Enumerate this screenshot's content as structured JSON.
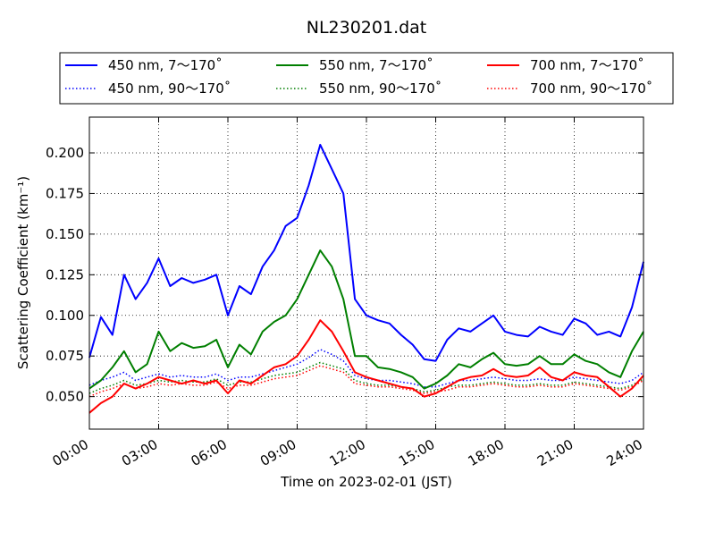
{
  "chart_data": {
    "type": "line",
    "title": "NL230201.dat",
    "xlabel": "Time on 2023-02-01 (JST)",
    "ylabel": "Scattering Coefficient (km⁻¹)",
    "xlim": [
      0,
      24
    ],
    "ylim": [
      0.03,
      0.222
    ],
    "xticks": [
      0,
      3,
      6,
      9,
      12,
      15,
      18,
      21,
      24
    ],
    "xtick_labels": [
      "00:00",
      "03:00",
      "06:00",
      "09:00",
      "12:00",
      "15:00",
      "18:00",
      "21:00",
      "24:00"
    ],
    "yticks": [
      0.05,
      0.075,
      0.1,
      0.125,
      0.15,
      0.175,
      0.2
    ],
    "ytick_labels": [
      "0.050",
      "0.075",
      "0.100",
      "0.125",
      "0.150",
      "0.175",
      "0.200"
    ],
    "grid": true,
    "legend_position": "top",
    "x": [
      0,
      0.5,
      1,
      1.5,
      2,
      2.5,
      3,
      3.5,
      4,
      4.5,
      5,
      5.5,
      6,
      6.5,
      7,
      7.5,
      8,
      8.5,
      9,
      9.5,
      10,
      10.5,
      11,
      11.5,
      12,
      12.5,
      13,
      13.5,
      14,
      14.5,
      15,
      15.5,
      16,
      16.5,
      17,
      17.5,
      18,
      18.5,
      19,
      19.5,
      20,
      20.5,
      21,
      21.5,
      22,
      22.5,
      23,
      23.5,
      24
    ],
    "series": [
      {
        "name": "450 nm, 7～170˚",
        "color": "#0000ff",
        "style": "solid",
        "values": [
          0.074,
          0.099,
          0.088,
          0.125,
          0.11,
          0.12,
          0.135,
          0.118,
          0.123,
          0.12,
          0.122,
          0.125,
          0.1,
          0.118,
          0.113,
          0.13,
          0.14,
          0.155,
          0.16,
          0.18,
          0.205,
          0.19,
          0.175,
          0.11,
          0.1,
          0.097,
          0.095,
          0.088,
          0.082,
          0.073,
          0.072,
          0.085,
          0.092,
          0.09,
          0.095,
          0.1,
          0.09,
          0.088,
          0.087,
          0.093,
          0.09,
          0.088,
          0.098,
          0.095,
          0.088,
          0.09,
          0.087,
          0.105,
          0.133
        ]
      },
      {
        "name": "550 nm, 7～170˚",
        "color": "#007f00",
        "style": "solid",
        "values": [
          0.055,
          0.06,
          0.068,
          0.078,
          0.065,
          0.07,
          0.09,
          0.078,
          0.083,
          0.08,
          0.081,
          0.085,
          0.068,
          0.082,
          0.076,
          0.09,
          0.096,
          0.1,
          0.11,
          0.125,
          0.14,
          0.13,
          0.11,
          0.075,
          0.075,
          0.068,
          0.067,
          0.065,
          0.062,
          0.055,
          0.058,
          0.063,
          0.07,
          0.068,
          0.073,
          0.077,
          0.07,
          0.069,
          0.07,
          0.075,
          0.07,
          0.07,
          0.076,
          0.072,
          0.07,
          0.065,
          0.062,
          0.078,
          0.09
        ]
      },
      {
        "name": "700 nm, 7～170˚",
        "color": "#ff0000",
        "style": "solid",
        "values": [
          0.04,
          0.046,
          0.05,
          0.058,
          0.055,
          0.058,
          0.062,
          0.06,
          0.058,
          0.06,
          0.058,
          0.06,
          0.052,
          0.06,
          0.058,
          0.063,
          0.068,
          0.07,
          0.075,
          0.085,
          0.097,
          0.09,
          0.078,
          0.065,
          0.062,
          0.06,
          0.058,
          0.056,
          0.055,
          0.05,
          0.052,
          0.056,
          0.06,
          0.062,
          0.063,
          0.067,
          0.063,
          0.062,
          0.063,
          0.068,
          0.062,
          0.06,
          0.065,
          0.063,
          0.062,
          0.056,
          0.05,
          0.055,
          0.063
        ]
      },
      {
        "name": "450 nm, 90～170˚",
        "color": "#0000ff",
        "style": "dotted",
        "values": [
          0.057,
          0.06,
          0.062,
          0.065,
          0.06,
          0.062,
          0.064,
          0.062,
          0.063,
          0.062,
          0.062,
          0.064,
          0.06,
          0.062,
          0.062,
          0.064,
          0.066,
          0.068,
          0.07,
          0.074,
          0.079,
          0.076,
          0.072,
          0.063,
          0.061,
          0.06,
          0.06,
          0.059,
          0.058,
          0.056,
          0.056,
          0.058,
          0.06,
          0.06,
          0.061,
          0.062,
          0.061,
          0.06,
          0.06,
          0.061,
          0.06,
          0.06,
          0.062,
          0.061,
          0.06,
          0.059,
          0.058,
          0.06,
          0.065
        ]
      },
      {
        "name": "550 nm, 90～170˚",
        "color": "#007f00",
        "style": "dotted",
        "values": [
          0.052,
          0.055,
          0.057,
          0.06,
          0.057,
          0.058,
          0.06,
          0.059,
          0.06,
          0.059,
          0.059,
          0.061,
          0.057,
          0.059,
          0.059,
          0.061,
          0.063,
          0.064,
          0.065,
          0.068,
          0.071,
          0.069,
          0.067,
          0.06,
          0.058,
          0.057,
          0.057,
          0.056,
          0.055,
          0.053,
          0.054,
          0.056,
          0.057,
          0.057,
          0.058,
          0.059,
          0.058,
          0.057,
          0.057,
          0.058,
          0.057,
          0.057,
          0.059,
          0.058,
          0.057,
          0.056,
          0.055,
          0.057,
          0.061
        ]
      },
      {
        "name": "700 nm, 90～170˚",
        "color": "#ff0000",
        "style": "dotted",
        "values": [
          0.05,
          0.053,
          0.055,
          0.058,
          0.055,
          0.056,
          0.058,
          0.057,
          0.058,
          0.057,
          0.057,
          0.059,
          0.055,
          0.057,
          0.057,
          0.059,
          0.061,
          0.062,
          0.063,
          0.066,
          0.069,
          0.067,
          0.065,
          0.058,
          0.057,
          0.056,
          0.056,
          0.055,
          0.054,
          0.052,
          0.053,
          0.054,
          0.056,
          0.056,
          0.057,
          0.058,
          0.057,
          0.056,
          0.056,
          0.057,
          0.056,
          0.056,
          0.058,
          0.057,
          0.056,
          0.055,
          0.054,
          0.056,
          0.06
        ]
      }
    ],
    "legend": [
      [
        "450 nm, 7～170˚",
        "550 nm, 7～170˚",
        "700 nm, 7～170˚"
      ],
      [
        "450 nm, 90～170˚",
        "550 nm, 90～170˚",
        "700 nm, 90～170˚"
      ]
    ]
  }
}
